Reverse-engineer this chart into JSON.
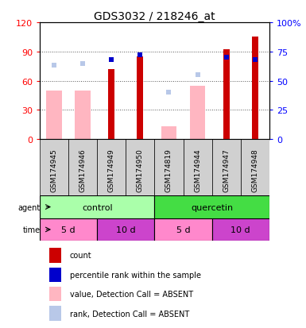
{
  "title": "GDS3032 / 218246_at",
  "samples": [
    "GSM174945",
    "GSM174946",
    "GSM174949",
    "GSM174950",
    "GSM174819",
    "GSM174944",
    "GSM174947",
    "GSM174948"
  ],
  "count_values": [
    0,
    0,
    72,
    85,
    0,
    0,
    92,
    105
  ],
  "value_absent": [
    50,
    50,
    0,
    0,
    13,
    55,
    0,
    0
  ],
  "rank_present": [
    0,
    0,
    68,
    72,
    0,
    0,
    70,
    68
  ],
  "rank_absent": [
    63,
    65,
    0,
    0,
    40,
    55,
    0,
    0
  ],
  "ylim_left": [
    0,
    120
  ],
  "ylim_right": [
    0,
    100
  ],
  "yticks_left": [
    0,
    30,
    60,
    90,
    120
  ],
  "yticks_right": [
    0,
    25,
    50,
    75,
    100
  ],
  "ytick_labels_left": [
    "0",
    "30",
    "60",
    "90",
    "120"
  ],
  "ytick_labels_right": [
    "0",
    "25",
    "50",
    "75",
    "100%"
  ],
  "color_count": "#cc0000",
  "color_rank_present": "#0000cc",
  "color_value_absent": "#ffb6c1",
  "color_rank_absent": "#b8c8e8",
  "sample_bg": "#d0d0d0",
  "agent_control_color": "#aaffaa",
  "agent_quercetin_color": "#44dd44",
  "time_5d_color": "#ff88cc",
  "time_10d_color": "#cc44cc",
  "legend_items": [
    {
      "color": "#cc0000",
      "label": "count"
    },
    {
      "color": "#0000cc",
      "label": "percentile rank within the sample"
    },
    {
      "color": "#ffb6c1",
      "label": "value, Detection Call = ABSENT"
    },
    {
      "color": "#b8c8e8",
      "label": "rank, Detection Call = ABSENT"
    }
  ]
}
